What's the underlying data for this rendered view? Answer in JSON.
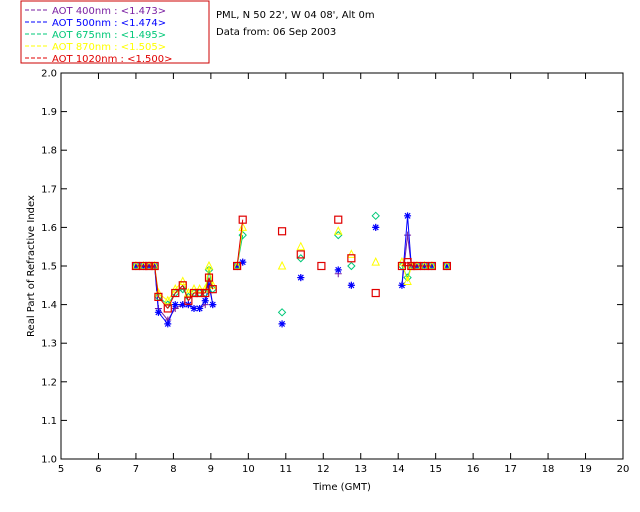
{
  "chart_data": {
    "type": "scatter",
    "info_lines": [
      "PML, N 50 22', W 04 08', Alt 0m",
      "Data from: 06 Sep 2003"
    ],
    "xlabel": "Time (GMT)",
    "ylabel": "Real Part of Refractive Index",
    "xlim": [
      5,
      20
    ],
    "ylim": [
      1.0,
      2.0
    ],
    "xticks": [
      "5",
      "6",
      "7",
      "8",
      "9",
      "10",
      "11",
      "12",
      "13",
      "14",
      "15",
      "16",
      "17",
      "18",
      "19",
      "20"
    ],
    "yticks": [
      "1.0",
      "1.1",
      "1.2",
      "1.3",
      "1.4",
      "1.5",
      "1.6",
      "1.7",
      "1.8",
      "1.9",
      "2.0"
    ],
    "grid": false,
    "legend_position": "top-left",
    "series": [
      {
        "name": "AOT  400nm : <1.473>",
        "color": "#7a1fa2",
        "marker": "plus",
        "points": [
          [
            7.0,
            1.5
          ],
          [
            7.2,
            1.5
          ],
          [
            7.35,
            1.5
          ],
          [
            7.5,
            1.5
          ],
          [
            7.6,
            1.39
          ],
          [
            7.85,
            1.36
          ],
          [
            8.05,
            1.39
          ],
          [
            8.25,
            1.4
          ],
          [
            8.4,
            1.4
          ],
          [
            8.55,
            1.39
          ],
          [
            8.7,
            1.39
          ],
          [
            8.85,
            1.4
          ],
          [
            8.95,
            1.46
          ],
          [
            9.05,
            1.4
          ],
          [
            9.7,
            1.5
          ],
          [
            9.85,
            1.51
          ],
          [
            10.9,
            1.35
          ],
          [
            11.4,
            1.47
          ],
          [
            12.4,
            1.48
          ],
          [
            12.75,
            1.45
          ],
          [
            13.4,
            1.6
          ],
          [
            14.1,
            1.45
          ],
          [
            14.25,
            1.58
          ],
          [
            14.35,
            1.5
          ],
          [
            14.5,
            1.5
          ],
          [
            14.7,
            1.5
          ],
          [
            14.9,
            1.5
          ],
          [
            15.3,
            1.5
          ]
        ]
      },
      {
        "name": "AOT  500nm : <1.474>",
        "color": "#0000ff",
        "marker": "star",
        "points": [
          [
            7.0,
            1.5
          ],
          [
            7.2,
            1.5
          ],
          [
            7.35,
            1.5
          ],
          [
            7.5,
            1.5
          ],
          [
            7.6,
            1.38
          ],
          [
            7.85,
            1.35
          ],
          [
            8.05,
            1.4
          ],
          [
            8.25,
            1.4
          ],
          [
            8.4,
            1.4
          ],
          [
            8.55,
            1.39
          ],
          [
            8.7,
            1.39
          ],
          [
            8.85,
            1.41
          ],
          [
            8.95,
            1.45
          ],
          [
            9.05,
            1.4
          ],
          [
            9.7,
            1.5
          ],
          [
            9.85,
            1.51
          ],
          [
            10.9,
            1.35
          ],
          [
            11.4,
            1.47
          ],
          [
            12.4,
            1.49
          ],
          [
            12.75,
            1.45
          ],
          [
            13.4,
            1.6
          ],
          [
            14.1,
            1.45
          ],
          [
            14.25,
            1.63
          ],
          [
            14.35,
            1.5
          ],
          [
            14.5,
            1.5
          ],
          [
            14.7,
            1.5
          ],
          [
            14.9,
            1.5
          ],
          [
            15.3,
            1.5
          ]
        ]
      },
      {
        "name": "AOT  675nm : <1.495>",
        "color": "#00c878",
        "marker": "diamond",
        "points": [
          [
            7.0,
            1.5
          ],
          [
            7.2,
            1.5
          ],
          [
            7.35,
            1.5
          ],
          [
            7.5,
            1.5
          ],
          [
            7.6,
            1.42
          ],
          [
            7.85,
            1.4
          ],
          [
            8.05,
            1.43
          ],
          [
            8.25,
            1.44
          ],
          [
            8.4,
            1.42
          ],
          [
            8.55,
            1.43
          ],
          [
            8.7,
            1.43
          ],
          [
            8.85,
            1.43
          ],
          [
            8.95,
            1.49
          ],
          [
            9.05,
            1.44
          ],
          [
            9.7,
            1.5
          ],
          [
            9.85,
            1.58
          ],
          [
            10.9,
            1.38
          ],
          [
            11.4,
            1.52
          ],
          [
            12.4,
            1.58
          ],
          [
            12.75,
            1.5
          ],
          [
            13.4,
            1.63
          ],
          [
            14.1,
            1.5
          ],
          [
            14.25,
            1.47
          ],
          [
            14.35,
            1.5
          ],
          [
            14.5,
            1.5
          ],
          [
            14.7,
            1.5
          ],
          [
            14.9,
            1.5
          ],
          [
            15.3,
            1.5
          ]
        ]
      },
      {
        "name": "AOT  870nm : <1.505>",
        "color": "#ffff00",
        "marker": "triangle",
        "points": [
          [
            7.0,
            1.5
          ],
          [
            7.2,
            1.5
          ],
          [
            7.35,
            1.5
          ],
          [
            7.5,
            1.5
          ],
          [
            7.6,
            1.43
          ],
          [
            7.85,
            1.41
          ],
          [
            8.05,
            1.44
          ],
          [
            8.25,
            1.46
          ],
          [
            8.4,
            1.43
          ],
          [
            8.55,
            1.44
          ],
          [
            8.7,
            1.44
          ],
          [
            8.85,
            1.44
          ],
          [
            8.95,
            1.5
          ],
          [
            9.05,
            1.45
          ],
          [
            9.7,
            1.5
          ],
          [
            9.85,
            1.6
          ],
          [
            10.9,
            1.5
          ],
          [
            11.4,
            1.55
          ],
          [
            12.4,
            1.59
          ],
          [
            12.75,
            1.53
          ],
          [
            13.4,
            1.51
          ],
          [
            14.1,
            1.51
          ],
          [
            14.25,
            1.46
          ],
          [
            14.35,
            1.5
          ],
          [
            14.5,
            1.5
          ],
          [
            14.7,
            1.5
          ],
          [
            14.9,
            1.5
          ],
          [
            15.3,
            1.5
          ]
        ]
      },
      {
        "name": "AOT 1020nm : <1.500>",
        "color": "#e00000",
        "marker": "square",
        "points": [
          [
            7.0,
            1.5
          ],
          [
            7.2,
            1.5
          ],
          [
            7.35,
            1.5
          ],
          [
            7.5,
            1.5
          ],
          [
            7.6,
            1.42
          ],
          [
            7.85,
            1.39
          ],
          [
            8.05,
            1.43
          ],
          [
            8.25,
            1.45
          ],
          [
            8.4,
            1.41
          ],
          [
            8.55,
            1.43
          ],
          [
            8.7,
            1.43
          ],
          [
            8.85,
            1.43
          ],
          [
            8.95,
            1.47
          ],
          [
            9.05,
            1.44
          ],
          [
            9.7,
            1.5
          ],
          [
            9.85,
            1.62
          ],
          [
            10.9,
            1.59
          ],
          [
            11.4,
            1.53
          ],
          [
            11.95,
            1.5
          ],
          [
            12.4,
            1.62
          ],
          [
            12.75,
            1.52
          ],
          [
            13.4,
            1.43
          ],
          [
            14.1,
            1.5
          ],
          [
            14.25,
            1.51
          ],
          [
            14.35,
            1.5
          ],
          [
            14.5,
            1.5
          ],
          [
            14.7,
            1.5
          ],
          [
            14.9,
            1.5
          ],
          [
            15.3,
            1.5
          ]
        ]
      }
    ]
  }
}
